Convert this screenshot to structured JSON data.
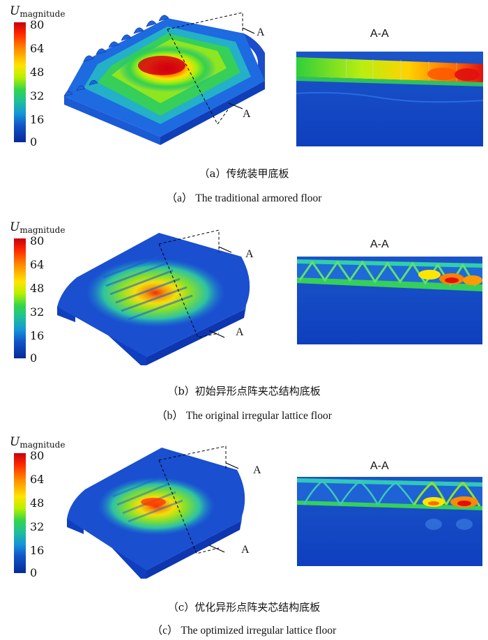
{
  "legend": {
    "title_var": "U",
    "title_sub": "magnitude",
    "ticks": [
      "80",
      "64",
      "48",
      "32",
      "16",
      "0"
    ]
  },
  "panels": [
    {
      "section_title": "A-A",
      "section_marker": "A",
      "caption_cn": "（a）传统装甲底板",
      "caption_en": "（a） The traditional armored floor"
    },
    {
      "section_title": "A-A",
      "section_marker": "A",
      "caption_cn": "（b）初始异形点阵夹芯结构底板",
      "caption_en": "（b） The original irregular lattice floor"
    },
    {
      "section_title": "A-A",
      "section_marker": "A",
      "caption_cn": "（c）优化异形点阵夹芯结构底板",
      "caption_en": "（c） The optimized irregular lattice floor"
    }
  ],
  "colors": {
    "max": "#c8000f",
    "high": "#ff8a00",
    "mid": "#ffe400",
    "low_mid": "#33d64a",
    "low": "#1496d8",
    "min": "#062a96"
  }
}
